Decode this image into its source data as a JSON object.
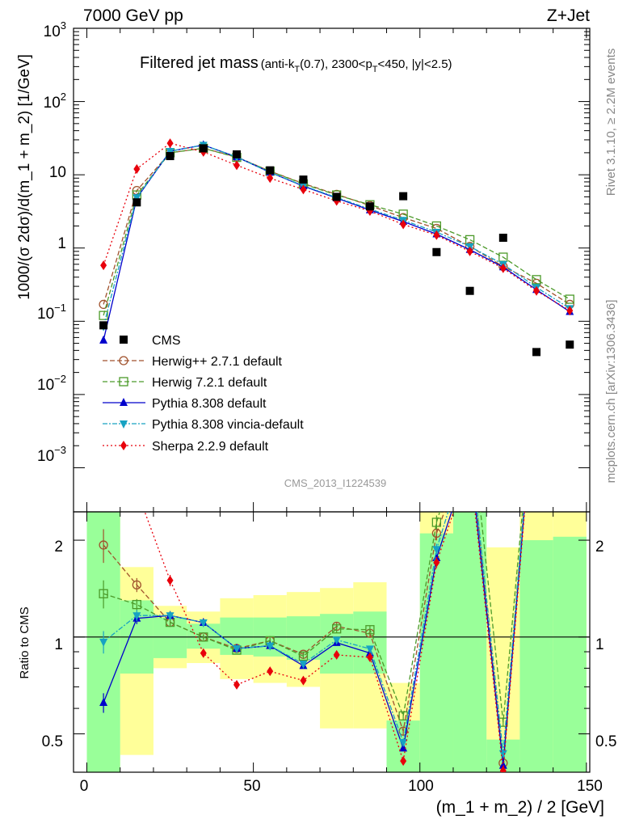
{
  "header": {
    "left": "7000 GeV pp",
    "right": "Z+Jet",
    "title_main": "Filtered jet mass",
    "title_sub_parts": [
      "(anti-k",
      "T",
      "(0.7), 2300<p",
      "T",
      "<450, |y|<2.5)"
    ]
  },
  "side_texts": {
    "rivet": "Rivet 3.1.10, ≥ 2.2M events",
    "mcplots": "mcplots.cern.ch [arXiv:1306.3436]"
  },
  "watermark": "CMS_2013_I1224539",
  "axes": {
    "ylabel_main": "1000/(σ 2dσ)/d(m_1 + m_2) [1/GeV]",
    "ylabel_ratio": "Ratio to CMS",
    "xlabel": "(m_1 + m_2) / 2 [GeV]",
    "x_ticks": [
      "0",
      "50",
      "100",
      "150"
    ],
    "y_main_ticks": [
      {
        "base": "10",
        "exp": "3"
      },
      {
        "base": "10",
        "exp": "2"
      },
      {
        "base": "10",
        "exp": ""
      },
      {
        "base": "1",
        "exp": ""
      },
      {
        "base": "10",
        "exp": "−1"
      },
      {
        "base": "10",
        "exp": "−2"
      },
      {
        "base": "10",
        "exp": "−3"
      }
    ],
    "y_ratio_ticks": [
      "2",
      "1",
      "0.5"
    ]
  },
  "legend": [
    {
      "label": "CMS",
      "color": "#000000"
    },
    {
      "label": "Herwig++ 2.7.1 default",
      "color": "#a0522d"
    },
    {
      "label": "Herwig 7.2.1 default",
      "color": "#4c9a2a"
    },
    {
      "label": "Pythia 8.308 default",
      "color": "#0000cc"
    },
    {
      "label": "Pythia 8.308 vincia-default",
      "color": "#17a2c2"
    },
    {
      "label": "Sherpa 2.2.9 default",
      "color": "#e8000b"
    }
  ],
  "chart_data": {
    "type": "scatter",
    "x": [
      5,
      15,
      25,
      35,
      45,
      55,
      65,
      75,
      85,
      95,
      105,
      115,
      125,
      135,
      145
    ],
    "xlim": [
      -4,
      151
    ],
    "ylim": [
      0.00025,
      1000
    ],
    "ylog": true,
    "ratio_ylim": [
      0.38,
      2.45
    ],
    "ratio_log": true,
    "data": {
      "name": "CMS",
      "values": [
        0.088,
        4.2,
        18,
        23,
        19,
        11.5,
        8.6,
        5.0,
        3.7,
        5.1,
        0.88,
        0.26,
        1.38,
        0.038,
        0.048
      ]
    },
    "series": [
      {
        "name": "Herwig++ 2.7.1 default",
        "color": "#a0522d",
        "marker": "circle",
        "dash": "6,3",
        "values": [
          0.17,
          6.1,
          20,
          23,
          17.5,
          11.2,
          7.6,
          5.4,
          3.8,
          2.6,
          1.85,
          1.05,
          0.56,
          0.33,
          0.17
        ]
      },
      {
        "name": "Herwig 7.2.1 default",
        "color": "#4c9a2a",
        "marker": "square",
        "dash": "6,3",
        "values": [
          0.12,
          5.3,
          20,
          23,
          17.3,
          11.2,
          7.5,
          5.3,
          3.9,
          2.9,
          2.0,
          1.3,
          0.75,
          0.37,
          0.2
        ]
      },
      {
        "name": "Pythia 8.308 default",
        "color": "#0000cc",
        "marker": "triangle",
        "dash": "",
        "values": [
          0.055,
          4.8,
          21,
          25.5,
          17.5,
          10.8,
          7.0,
          4.8,
          3.3,
          2.3,
          1.55,
          0.95,
          0.55,
          0.27,
          0.135
        ]
      },
      {
        "name": "Pythia 8.308 vincia-default",
        "color": "#17a2c2",
        "marker": "triangle-down",
        "dash": "6,2,2,2",
        "values": [
          0.085,
          4.9,
          21,
          25.5,
          17.5,
          10.8,
          7.1,
          4.9,
          3.4,
          2.4,
          1.65,
          1.05,
          0.6,
          0.29,
          0.15
        ]
      },
      {
        "name": "Sherpa 2.2.9 default",
        "color": "#e8000b",
        "marker": "diamond",
        "dash": "2,3",
        "values": [
          0.58,
          12,
          27,
          20.5,
          13.5,
          9.0,
          6.3,
          4.4,
          3.2,
          2.1,
          1.5,
          0.9,
          0.53,
          0.26,
          0.14
        ]
      }
    ],
    "ratio_band_inner": [
      {
        "xmin": 0,
        "xmax": 10,
        "lo": 0.38,
        "hi": 2.45
      },
      {
        "xmin": 10,
        "xmax": 20,
        "lo": 0.77,
        "hi": 1.3
      },
      {
        "xmin": 20,
        "xmax": 30,
        "lo": 0.86,
        "hi": 1.15
      },
      {
        "xmin": 30,
        "xmax": 40,
        "lo": 0.92,
        "hi": 1.1
      },
      {
        "xmin": 40,
        "xmax": 50,
        "lo": 0.88,
        "hi": 1.15
      },
      {
        "xmin": 50,
        "xmax": 60,
        "lo": 0.87,
        "hi": 1.15
      },
      {
        "xmin": 60,
        "xmax": 70,
        "lo": 0.85,
        "hi": 1.16
      },
      {
        "xmin": 70,
        "xmax": 80,
        "lo": 0.77,
        "hi": 1.18
      },
      {
        "xmin": 80,
        "xmax": 90,
        "lo": 0.77,
        "hi": 1.2
      },
      {
        "xmin": 90,
        "xmax": 100,
        "lo": 0.38,
        "hi": 0.55
      },
      {
        "xmin": 100,
        "xmax": 110,
        "lo": 0.38,
        "hi": 2.1
      },
      {
        "xmin": 110,
        "xmax": 120,
        "lo": 0.38,
        "hi": 2.45
      },
      {
        "xmin": 120,
        "xmax": 130,
        "lo": 0.38,
        "hi": 0.48
      },
      {
        "xmin": 130,
        "xmax": 140,
        "lo": 0.38,
        "hi": 2.0
      },
      {
        "xmin": 140,
        "xmax": 150,
        "lo": 0.38,
        "hi": 2.05
      }
    ],
    "ratio_band_outer": [
      {
        "xmin": 0,
        "xmax": 10,
        "lo": 0.38,
        "hi": 2.45
      },
      {
        "xmin": 10,
        "xmax": 20,
        "lo": 0.43,
        "hi": 1.65
      },
      {
        "xmin": 20,
        "xmax": 30,
        "lo": 0.8,
        "hi": 1.25
      },
      {
        "xmin": 30,
        "xmax": 40,
        "lo": 0.83,
        "hi": 1.2
      },
      {
        "xmin": 40,
        "xmax": 50,
        "lo": 0.74,
        "hi": 1.32
      },
      {
        "xmin": 50,
        "xmax": 60,
        "lo": 0.72,
        "hi": 1.35
      },
      {
        "xmin": 60,
        "xmax": 70,
        "lo": 0.7,
        "hi": 1.38
      },
      {
        "xmin": 70,
        "xmax": 80,
        "lo": 0.52,
        "hi": 1.42
      },
      {
        "xmin": 80,
        "xmax": 90,
        "lo": 0.52,
        "hi": 1.48
      },
      {
        "xmin": 90,
        "xmax": 100,
        "lo": 0.38,
        "hi": 0.72
      },
      {
        "xmin": 100,
        "xmax": 110,
        "lo": 0.38,
        "hi": 2.45
      },
      {
        "xmin": 110,
        "xmax": 120,
        "lo": 0.38,
        "hi": 2.45
      },
      {
        "xmin": 120,
        "xmax": 130,
        "lo": 0.38,
        "hi": 1.9
      },
      {
        "xmin": 130,
        "xmax": 140,
        "lo": 0.38,
        "hi": 2.45
      },
      {
        "xmin": 140,
        "xmax": 150,
        "lo": 0.38,
        "hi": 2.45
      }
    ],
    "ratio_errors": {
      "Herwig++ 2.7.1 default": [
        0.12,
        0.05,
        0.03,
        0.02,
        0.02,
        0.02,
        0.02,
        0.03,
        0.03,
        0.03,
        0.05,
        0.06,
        0.03,
        0.1,
        0.1
      ],
      "Herwig 7.2.1 default": [
        0.1,
        0.04,
        0.03,
        0.02,
        0.02,
        0.02,
        0.02,
        0.03,
        0.03,
        0.03,
        0.05,
        0.06,
        0.03,
        0.1,
        0.1
      ],
      "Pythia 8.308 default": [
        0.07,
        0.04,
        0.03,
        0.02,
        0.02,
        0.02,
        0.02,
        0.02,
        0.02,
        0.02,
        0.04,
        0.05,
        0.02,
        0.1,
        0.1
      ],
      "Pythia 8.308 vincia-default": [
        0.08,
        0.04,
        0.03,
        0.02,
        0.02,
        0.02,
        0.02,
        0.02,
        0.02,
        0.02,
        0.04,
        0.05,
        0.02,
        0.1,
        0.1
      ],
      "Sherpa 2.2.9 default": [
        0.2,
        0.08,
        0.04,
        0.02,
        0.02,
        0.02,
        0.02,
        0.02,
        0.02,
        0.02,
        0.04,
        0.05,
        0.02,
        0.1,
        0.1
      ]
    }
  }
}
